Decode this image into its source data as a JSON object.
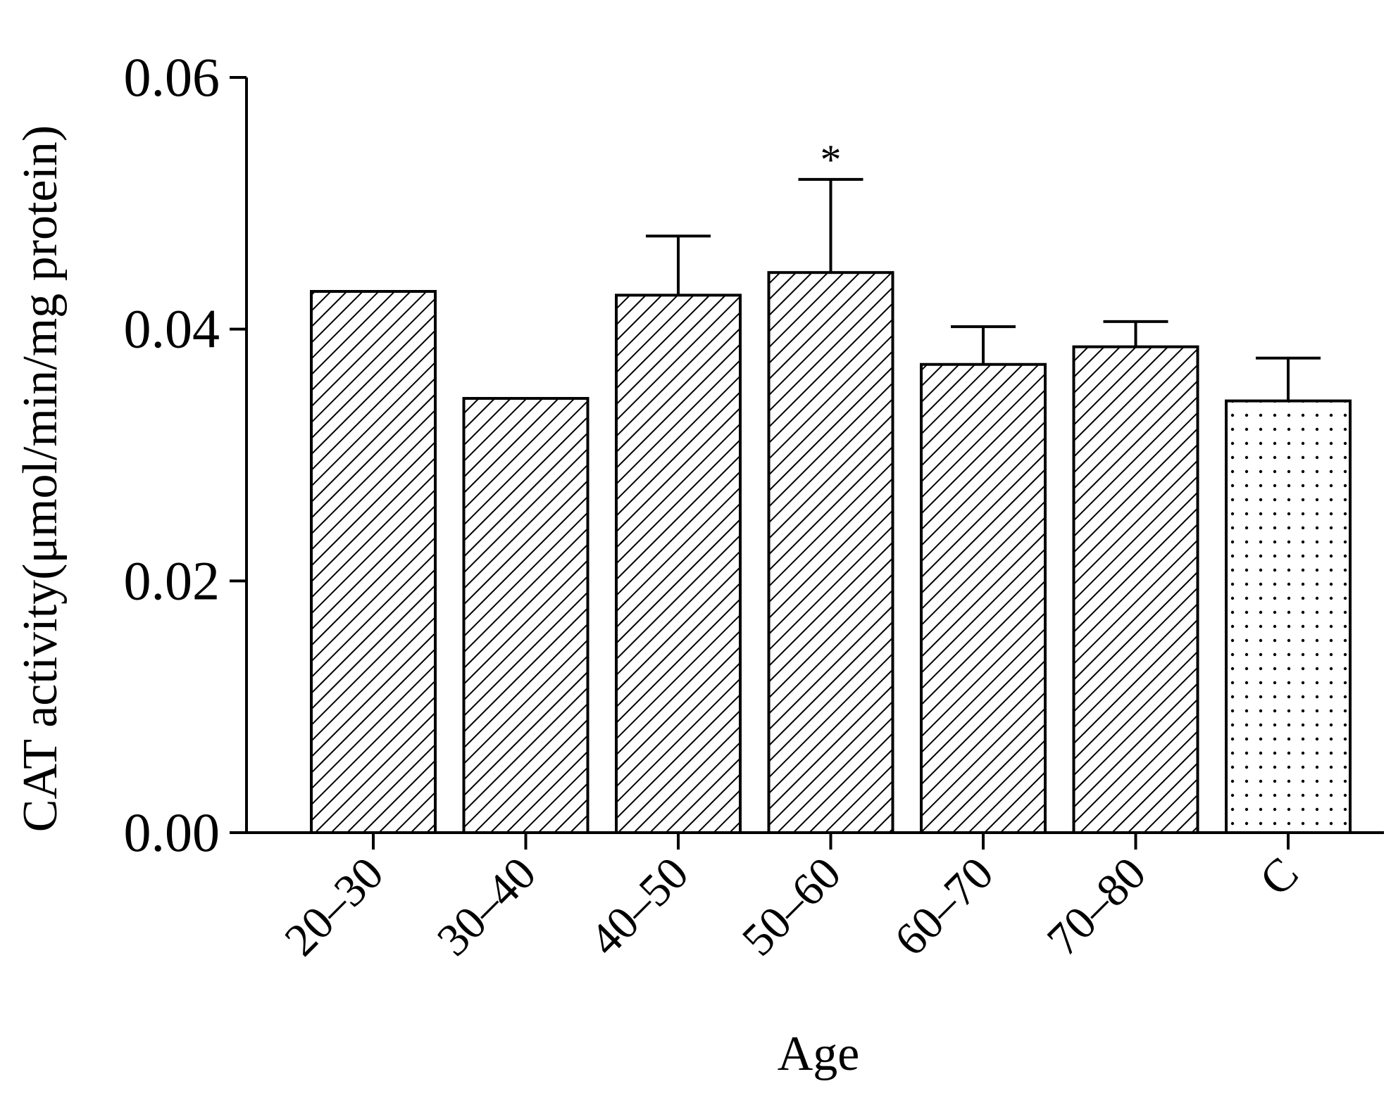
{
  "chart_data": {
    "type": "bar",
    "title": "",
    "xlabel": "Age",
    "ylabel": "CAT activity(μmol/min/mg protein)",
    "categories": [
      "20–30",
      "30–40",
      "40–50",
      "50–60",
      "60–70",
      "70–80",
      "C"
    ],
    "series": [
      {
        "values": [
          0.043,
          0.0345,
          0.0427,
          0.0445,
          0.0372,
          0.0386,
          0.0343
        ],
        "error_upper": [
          0,
          0,
          0.0047,
          0.0074,
          0.003,
          0.002,
          0.0034
        ],
        "annotations": [
          "",
          "",
          "",
          "*",
          "",
          "",
          ""
        ],
        "patterns": [
          "hatch",
          "hatch",
          "hatch",
          "hatch",
          "hatch",
          "hatch",
          "dots"
        ]
      }
    ],
    "ylim": [
      0,
      0.06
    ],
    "yticks": [
      "0.00",
      "0.02",
      "0.04",
      "0.06"
    ],
    "grid": false,
    "colors": {
      "bar_fill": "#ffffff",
      "stroke": "#000000"
    }
  }
}
